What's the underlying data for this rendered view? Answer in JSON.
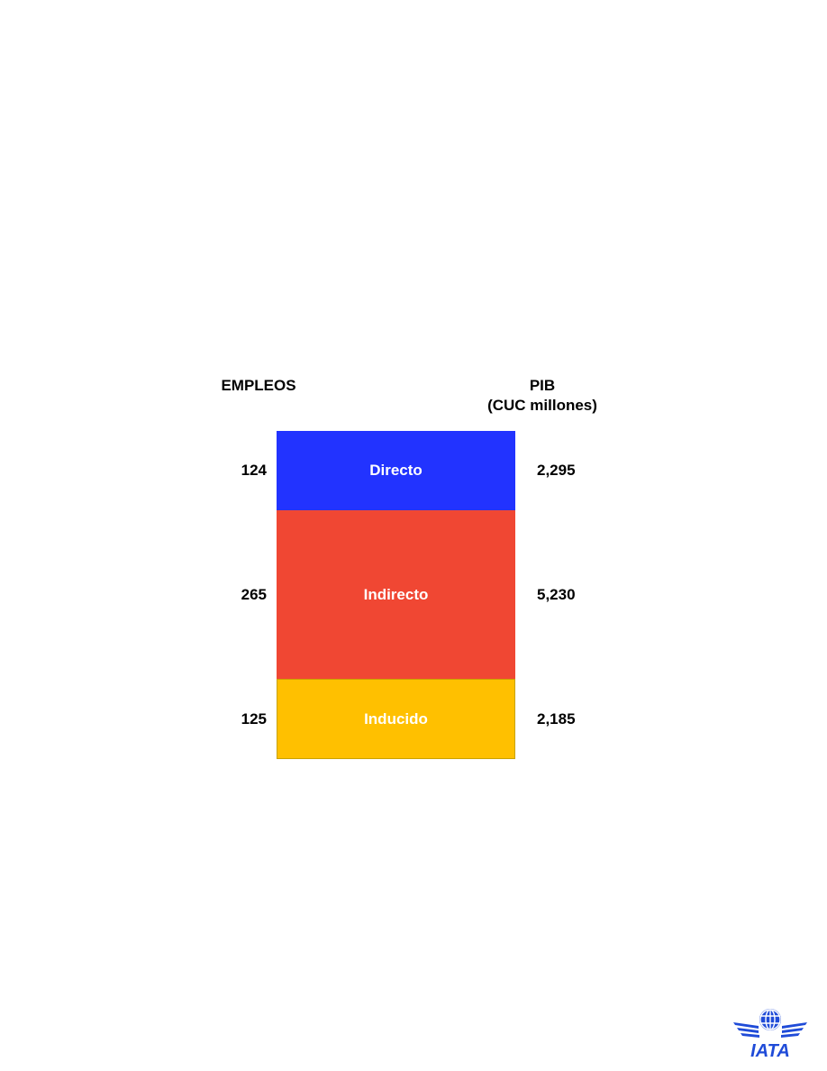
{
  "chart_data": {
    "type": "bar",
    "stacked": true,
    "categories": [
      "Directo",
      "Indirecto",
      "Inducido"
    ],
    "left_header": "EMPLEOS",
    "right_header_line1": "PIB",
    "right_header_line2": "(CUC millones)",
    "series": [
      {
        "values": [
          124,
          265,
          125
        ],
        "labels": [
          "124",
          "265",
          "125"
        ]
      },
      {
        "values": [
          2295,
          5230,
          2185
        ],
        "labels": [
          "2,295",
          "5,230",
          "2,185"
        ]
      }
    ],
    "segment_colors": [
      "#2233ff",
      "#f04733",
      "#ffc000"
    ]
  },
  "logo": {
    "text": "IATA",
    "icon": "globe-wings-icon",
    "color": "#1f4bd8"
  }
}
